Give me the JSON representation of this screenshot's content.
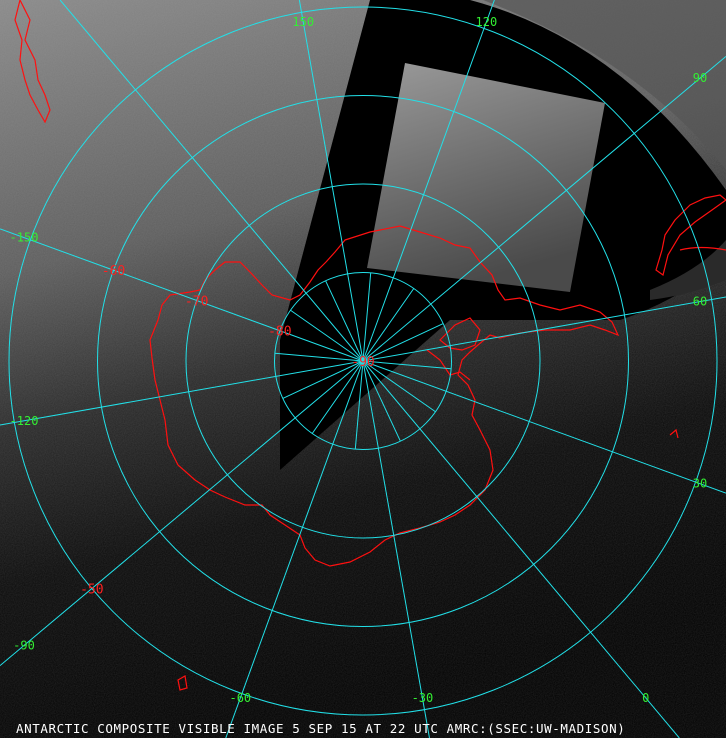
{
  "caption": "ANTARCTIC COMPOSITE VISIBLE IMAGE 5 SEP 15 AT 22 UTC AMRC:(SSEC:UW-MADISON)",
  "colors": {
    "graticule": "#22e0e8",
    "coastline": "#ff1010",
    "longitude_label": "#33ee33",
    "latitude_label": "#ff2020",
    "caption": "#ffffff"
  },
  "longitude_labels": [
    {
      "lon": 150,
      "text": "150"
    },
    {
      "lon": 120,
      "text": "120"
    },
    {
      "lon": 90,
      "text": "90"
    },
    {
      "lon": 60,
      "text": "60"
    },
    {
      "lon": 30,
      "text": "30"
    },
    {
      "lon": 0,
      "text": "0"
    },
    {
      "lon": -30,
      "text": "-30"
    },
    {
      "lon": -60,
      "text": "-60"
    },
    {
      "lon": -90,
      "text": "-90"
    },
    {
      "lon": -120,
      "text": "-120"
    },
    {
      "lon": -150,
      "text": "-150"
    }
  ],
  "latitude_labels": [
    {
      "lat": -90,
      "text": "-90"
    },
    {
      "lat": -80,
      "text": "-80"
    },
    {
      "lat": -70,
      "text": "-70"
    },
    {
      "lat": -60,
      "text": "-60"
    },
    {
      "lat": -50,
      "text": "-50"
    }
  ],
  "projection": "south polar stereographic",
  "imagery": "visible satellite composite"
}
